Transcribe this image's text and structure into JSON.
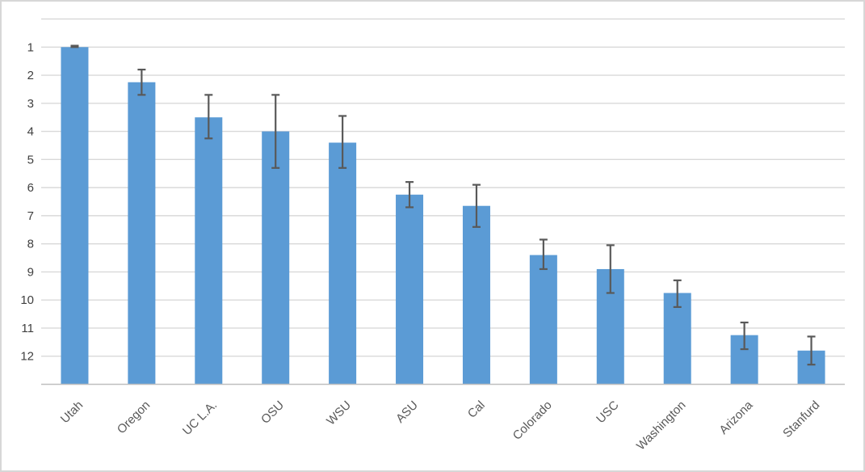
{
  "chart_data": {
    "type": "bar",
    "title": "",
    "xlabel": "",
    "ylabel": "",
    "legend": "none",
    "grid": "horizontal",
    "y_axis": {
      "reversed": true,
      "min": 0,
      "max": 13,
      "tick_step": 1,
      "tick_labels": [
        "1",
        "2",
        "3",
        "4",
        "5",
        "6",
        "7",
        "8",
        "9",
        "10",
        "11",
        "12"
      ],
      "bars_baseline_value": 13
    },
    "categories": [
      "Utah",
      "Oregon",
      "UC L.A.",
      "OSU",
      "WSU",
      "ASU",
      "Cal",
      "Colorado",
      "USC",
      "Washington",
      "Arizona",
      "Stanfurd"
    ],
    "values": [
      1.0,
      2.25,
      3.5,
      4.0,
      4.4,
      6.25,
      6.65,
      8.4,
      8.9,
      9.75,
      11.25,
      11.8
    ],
    "error_bars": {
      "whisker_top_values": [
        0.95,
        1.8,
        2.7,
        2.7,
        3.45,
        5.8,
        5.9,
        7.85,
        8.05,
        9.3,
        10.8,
        11.3
      ],
      "whisker_bottom_values": [
        1.0,
        2.7,
        4.25,
        5.3,
        5.3,
        6.7,
        7.4,
        8.9,
        9.75,
        10.25,
        11.75,
        12.3
      ]
    },
    "colors": {
      "bar_fill": "#5b9bd5",
      "error_bar": "#595959",
      "gridline": "#d9d9d9",
      "axis_line": "#bfbfbf",
      "y_tick_label": "#404040",
      "x_tick_label": "#595959",
      "frame_border": "#d7d7d7",
      "background": "#ffffff"
    }
  }
}
